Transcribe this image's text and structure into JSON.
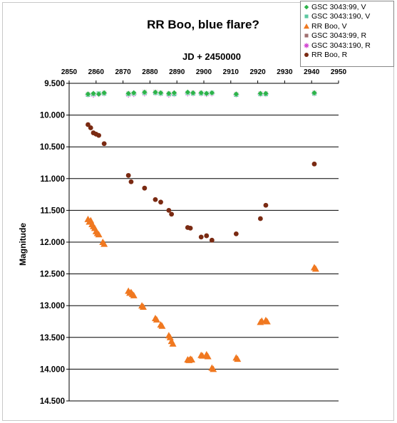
{
  "chart_data": {
    "type": "scatter",
    "title": "RR Boo, blue flare?",
    "xlabel": "JD + 2450000",
    "ylabel": "Magnitude",
    "xlim": [
      2850,
      2950
    ],
    "ylim": [
      9.5,
      14.5
    ],
    "y_inverted": true,
    "x_axis_position": "top",
    "xticks": [
      "2850",
      "2860",
      "2870",
      "2880",
      "2890",
      "2900",
      "2910",
      "2920",
      "2930",
      "2940",
      "2950"
    ],
    "yticks": [
      "9.500",
      "10.000",
      "10.500",
      "11.000",
      "11.500",
      "12.000",
      "12.500",
      "13.000",
      "13.500",
      "14.000",
      "14.500"
    ],
    "grid": "horizontal",
    "legend": "top-right",
    "series": [
      {
        "name": "GSC 3043:99, V",
        "marker": "diamond",
        "color": "#2db34a",
        "x": [
          2857,
          2859,
          2861,
          2863,
          2872,
          2874,
          2878,
          2882,
          2884,
          2887,
          2889,
          2894,
          2896,
          2899,
          2901,
          2903,
          2912,
          2921,
          2923,
          2941
        ],
        "y": [
          9.67,
          9.66,
          9.67,
          9.65,
          9.66,
          9.65,
          9.64,
          9.64,
          9.65,
          9.66,
          9.65,
          9.64,
          9.65,
          9.65,
          9.66,
          9.65,
          9.67,
          9.66,
          9.66,
          9.65
        ]
      },
      {
        "name": "GSC 3043:190, V",
        "marker": "square",
        "color": "#5cc8a0",
        "x": [
          2857,
          2859,
          2861,
          2863,
          2872,
          2874,
          2878,
          2882,
          2884,
          2887,
          2889,
          2894,
          2896,
          2899,
          2901,
          2903,
          2912,
          2921,
          2923,
          2941
        ],
        "y": [
          9.68,
          9.67,
          9.66,
          9.66,
          9.67,
          9.66,
          9.65,
          9.65,
          9.66,
          9.67,
          9.67,
          9.65,
          9.66,
          9.66,
          9.66,
          9.65,
          9.68,
          9.67,
          9.67,
          9.66
        ]
      },
      {
        "name": "RR Boo, V",
        "marker": "triangle",
        "color": "#f07820",
        "x": [
          2857,
          2857.5,
          2858,
          2858.5,
          2859,
          2859.5,
          2860,
          2860.5,
          2861,
          2862.5,
          2863,
          2872,
          2872.5,
          2873,
          2873.5,
          2874,
          2877,
          2877.5,
          2882,
          2882.5,
          2884,
          2884.5,
          2887,
          2887.5,
          2888,
          2888.5,
          2894,
          2894.5,
          2895,
          2895.5,
          2899,
          2899.5,
          2901,
          2901.5,
          2903,
          2903.5,
          2912,
          2912.5,
          2921,
          2921.5,
          2923,
          2923.5,
          2941,
          2941.5
        ],
        "y": [
          11.64,
          11.68,
          11.66,
          11.72,
          11.75,
          11.78,
          11.83,
          11.86,
          11.88,
          12.0,
          12.03,
          12.77,
          12.8,
          12.79,
          12.82,
          12.84,
          13.0,
          13.02,
          13.2,
          13.22,
          13.3,
          13.32,
          13.47,
          13.5,
          13.56,
          13.6,
          13.85,
          13.86,
          13.84,
          13.85,
          13.78,
          13.79,
          13.77,
          13.8,
          13.98,
          14.0,
          13.82,
          13.84,
          13.26,
          13.24,
          13.23,
          13.25,
          12.4,
          12.42
        ]
      },
      {
        "name": "GSC 3043:99, R",
        "marker": "square",
        "color": "#a07070",
        "x": [
          2857,
          2859,
          2861,
          2863,
          2872,
          2874,
          2878,
          2882,
          2884,
          2887,
          2889,
          2894,
          2896,
          2899,
          2901,
          2903,
          2912,
          2921,
          2923,
          2941
        ],
        "y": [
          9.67,
          9.67,
          9.66,
          9.65,
          9.66,
          9.66,
          9.64,
          9.64,
          9.65,
          9.66,
          9.66,
          9.65,
          9.65,
          9.65,
          9.66,
          9.65,
          9.67,
          9.66,
          9.66,
          9.65
        ]
      },
      {
        "name": "GSC 3043:190, R",
        "marker": "asterisk",
        "color": "#d040d0",
        "x": [
          2857,
          2859,
          2861,
          2863,
          2872,
          2874,
          2878,
          2882,
          2884,
          2887,
          2889,
          2894,
          2896,
          2899,
          2901,
          2903,
          2912,
          2921,
          2923,
          2941
        ],
        "y": [
          9.68,
          9.68,
          9.67,
          9.66,
          9.68,
          9.67,
          9.66,
          9.65,
          9.66,
          9.68,
          9.67,
          9.66,
          9.66,
          9.66,
          9.67,
          9.66,
          9.68,
          9.67,
          9.67,
          9.66
        ]
      },
      {
        "name": "RR Boo, R",
        "marker": "circle",
        "color": "#7a2a12",
        "x": [
          2857,
          2858,
          2859,
          2860,
          2861,
          2863,
          2872,
          2873,
          2878,
          2882,
          2884,
          2887,
          2888,
          2894,
          2895,
          2899,
          2901,
          2903,
          2912,
          2921,
          2923,
          2941
        ],
        "y": [
          10.15,
          10.2,
          10.28,
          10.3,
          10.32,
          10.45,
          10.95,
          11.05,
          11.15,
          11.33,
          11.37,
          11.5,
          11.56,
          11.77,
          11.78,
          11.92,
          11.9,
          11.97,
          11.87,
          11.63,
          11.42,
          10.77
        ]
      }
    ]
  }
}
